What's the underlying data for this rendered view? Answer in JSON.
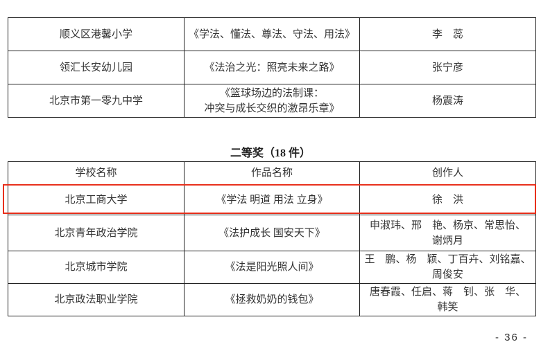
{
  "top_table": {
    "rows": [
      {
        "school": "顺义区港馨小学",
        "work": "《学法、懂法、尊法、守法、用法》",
        "author": "李　蕊"
      },
      {
        "school": "领汇长安幼儿园",
        "work": "《法治之光：照亮未来之路》",
        "author": "张宁彦"
      },
      {
        "school": "北京市第一零九中学",
        "work_line1": "《篮球场边的法制课：",
        "work_line2": "冲突与成长交织的激昂乐章》",
        "author": "杨震涛"
      }
    ]
  },
  "second_prize": {
    "title": "二等奖（18 件）",
    "headers": {
      "school": "学校名称",
      "work": "作品名称",
      "author": "创作人"
    },
    "rows": [
      {
        "school": "北京工商大学",
        "work": "《学法 明道 用法 立身》",
        "author": "徐　洪",
        "highlighted": true
      },
      {
        "school": "北京青年政治学院",
        "work": "《法护成长 国安天下》",
        "author_line1": "申淑玮、邢　艳、杨京、常思怡、",
        "author_line2": "谢炳月"
      },
      {
        "school": "北京城市学院",
        "work": "《法是阳光照人间》",
        "author_line1": "王　鹏、杨　颖、丁百卉、刘铭嘉、",
        "author_line2": "周俊安"
      },
      {
        "school": "北京政法职业学院",
        "work": "《拯救奶奶的钱包》",
        "author_line1": "唐春霞、任启、蒋　钊、张　华、",
        "author_line2": "韩笑"
      }
    ]
  },
  "highlight_color": "#e8301c",
  "page_number": "- 36 -"
}
